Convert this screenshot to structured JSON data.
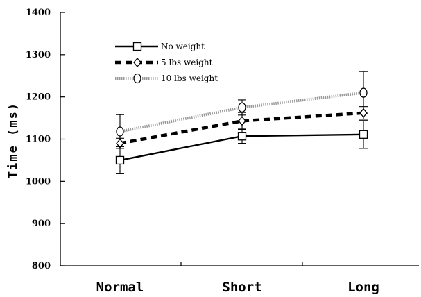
{
  "chart_data": {
    "type": "line",
    "title": "",
    "xlabel": "",
    "ylabel": "Time (ms)",
    "categories": [
      "Normal",
      "Short",
      "Long"
    ],
    "ylim": [
      800,
      1400
    ],
    "yticks": [
      "800",
      "900",
      "1000",
      "1100",
      "1200",
      "1300",
      "1400"
    ],
    "grid": false,
    "legend_position": "top-left",
    "series": [
      {
        "name": "No weight",
        "values": [
          1050,
          1107,
          1111
        ],
        "errors": [
          32,
          17,
          33
        ],
        "line_style": "solid",
        "marker": "square",
        "color": "#000000"
      },
      {
        "name": "5 lbs weight",
        "values": [
          1090,
          1143,
          1162
        ],
        "errors": [
          12,
          20,
          15
        ],
        "line_style": "dashed",
        "marker": "diamond",
        "color": "#000000"
      },
      {
        "name": "10 lbs weight",
        "values": [
          1118,
          1175,
          1210
        ],
        "errors": [
          40,
          18,
          50
        ],
        "line_style": "hatched",
        "marker": "circle",
        "color": "#9a9a9a"
      }
    ]
  }
}
